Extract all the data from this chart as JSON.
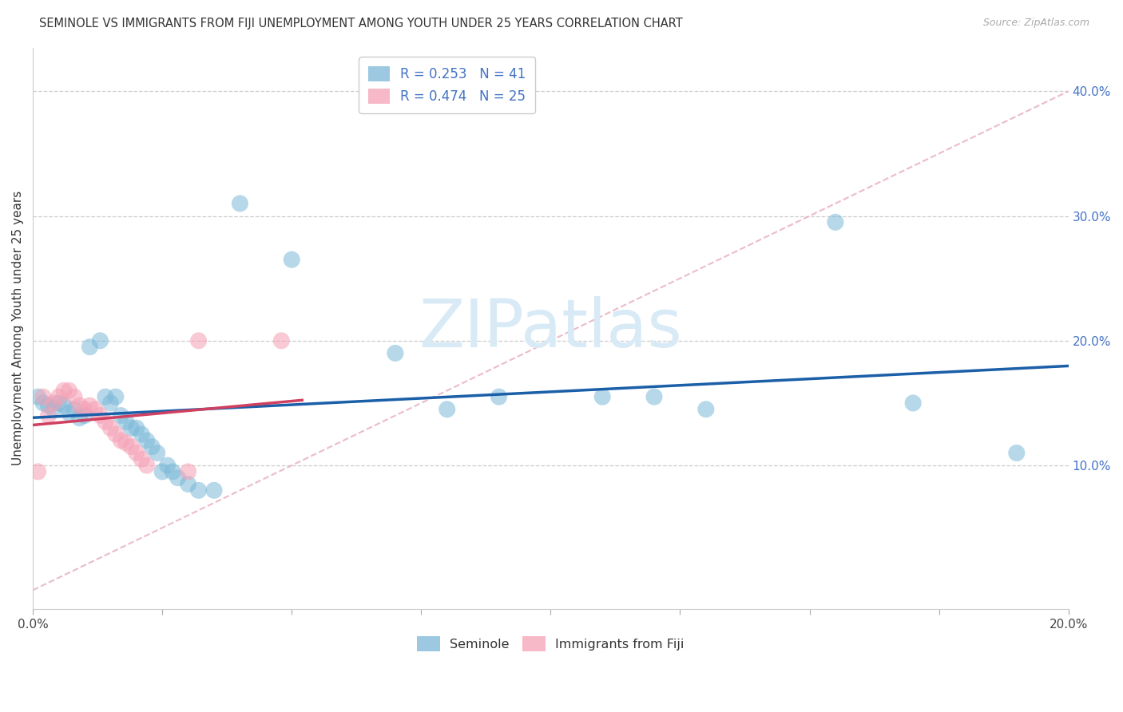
{
  "title": "SEMINOLE VS IMMIGRANTS FROM FIJI UNEMPLOYMENT AMONG YOUTH UNDER 25 YEARS CORRELATION CHART",
  "source": "Source: ZipAtlas.com",
  "ylabel": "Unemployment Among Youth under 25 years",
  "xlim": [
    0.0,
    0.2
  ],
  "ylim": [
    -0.015,
    0.435
  ],
  "xticks_major": [
    0.0,
    0.025,
    0.05,
    0.075,
    0.1,
    0.125,
    0.15,
    0.175,
    0.2
  ],
  "xticks_labeled": [
    0.0,
    0.2
  ],
  "yticks_right": [
    0.1,
    0.2,
    0.3,
    0.4
  ],
  "legend1_R": "0.253",
  "legend1_N": "41",
  "legend2_R": "0.474",
  "legend2_N": "25",
  "blue_color": "#7bb8d8",
  "pink_color": "#f5a0b5",
  "blue_line_color": "#1a5fa8",
  "pink_line_color": "#d04060",
  "diag_color": "#e8b0c0",
  "blue_scatter": [
    [
      0.001,
      0.155
    ],
    [
      0.002,
      0.15
    ],
    [
      0.003,
      0.148
    ],
    [
      0.004,
      0.145
    ],
    [
      0.005,
      0.15
    ],
    [
      0.006,
      0.148
    ],
    [
      0.007,
      0.142
    ],
    [
      0.008,
      0.145
    ],
    [
      0.009,
      0.138
    ],
    [
      0.01,
      0.14
    ],
    [
      0.011,
      0.195
    ],
    [
      0.013,
      0.2
    ],
    [
      0.014,
      0.155
    ],
    [
      0.015,
      0.15
    ],
    [
      0.016,
      0.155
    ],
    [
      0.017,
      0.14
    ],
    [
      0.018,
      0.135
    ],
    [
      0.019,
      0.13
    ],
    [
      0.02,
      0.13
    ],
    [
      0.021,
      0.125
    ],
    [
      0.022,
      0.12
    ],
    [
      0.023,
      0.115
    ],
    [
      0.024,
      0.11
    ],
    [
      0.025,
      0.095
    ],
    [
      0.026,
      0.1
    ],
    [
      0.027,
      0.095
    ],
    [
      0.028,
      0.09
    ],
    [
      0.03,
      0.085
    ],
    [
      0.032,
      0.08
    ],
    [
      0.035,
      0.08
    ],
    [
      0.04,
      0.31
    ],
    [
      0.05,
      0.265
    ],
    [
      0.07,
      0.19
    ],
    [
      0.08,
      0.145
    ],
    [
      0.09,
      0.155
    ],
    [
      0.11,
      0.155
    ],
    [
      0.12,
      0.155
    ],
    [
      0.13,
      0.145
    ],
    [
      0.155,
      0.295
    ],
    [
      0.17,
      0.15
    ],
    [
      0.19,
      0.11
    ]
  ],
  "pink_scatter": [
    [
      0.001,
      0.095
    ],
    [
      0.002,
      0.155
    ],
    [
      0.003,
      0.14
    ],
    [
      0.004,
      0.15
    ],
    [
      0.005,
      0.155
    ],
    [
      0.006,
      0.16
    ],
    [
      0.007,
      0.16
    ],
    [
      0.008,
      0.155
    ],
    [
      0.009,
      0.148
    ],
    [
      0.01,
      0.145
    ],
    [
      0.011,
      0.148
    ],
    [
      0.012,
      0.145
    ],
    [
      0.013,
      0.14
    ],
    [
      0.014,
      0.135
    ],
    [
      0.015,
      0.13
    ],
    [
      0.016,
      0.125
    ],
    [
      0.017,
      0.12
    ],
    [
      0.018,
      0.118
    ],
    [
      0.019,
      0.115
    ],
    [
      0.02,
      0.11
    ],
    [
      0.021,
      0.105
    ],
    [
      0.022,
      0.1
    ],
    [
      0.03,
      0.095
    ],
    [
      0.032,
      0.2
    ],
    [
      0.048,
      0.2
    ]
  ],
  "watermark": "ZIPatlas",
  "watermark_color": "#d8eaf5",
  "background_color": "#ffffff"
}
